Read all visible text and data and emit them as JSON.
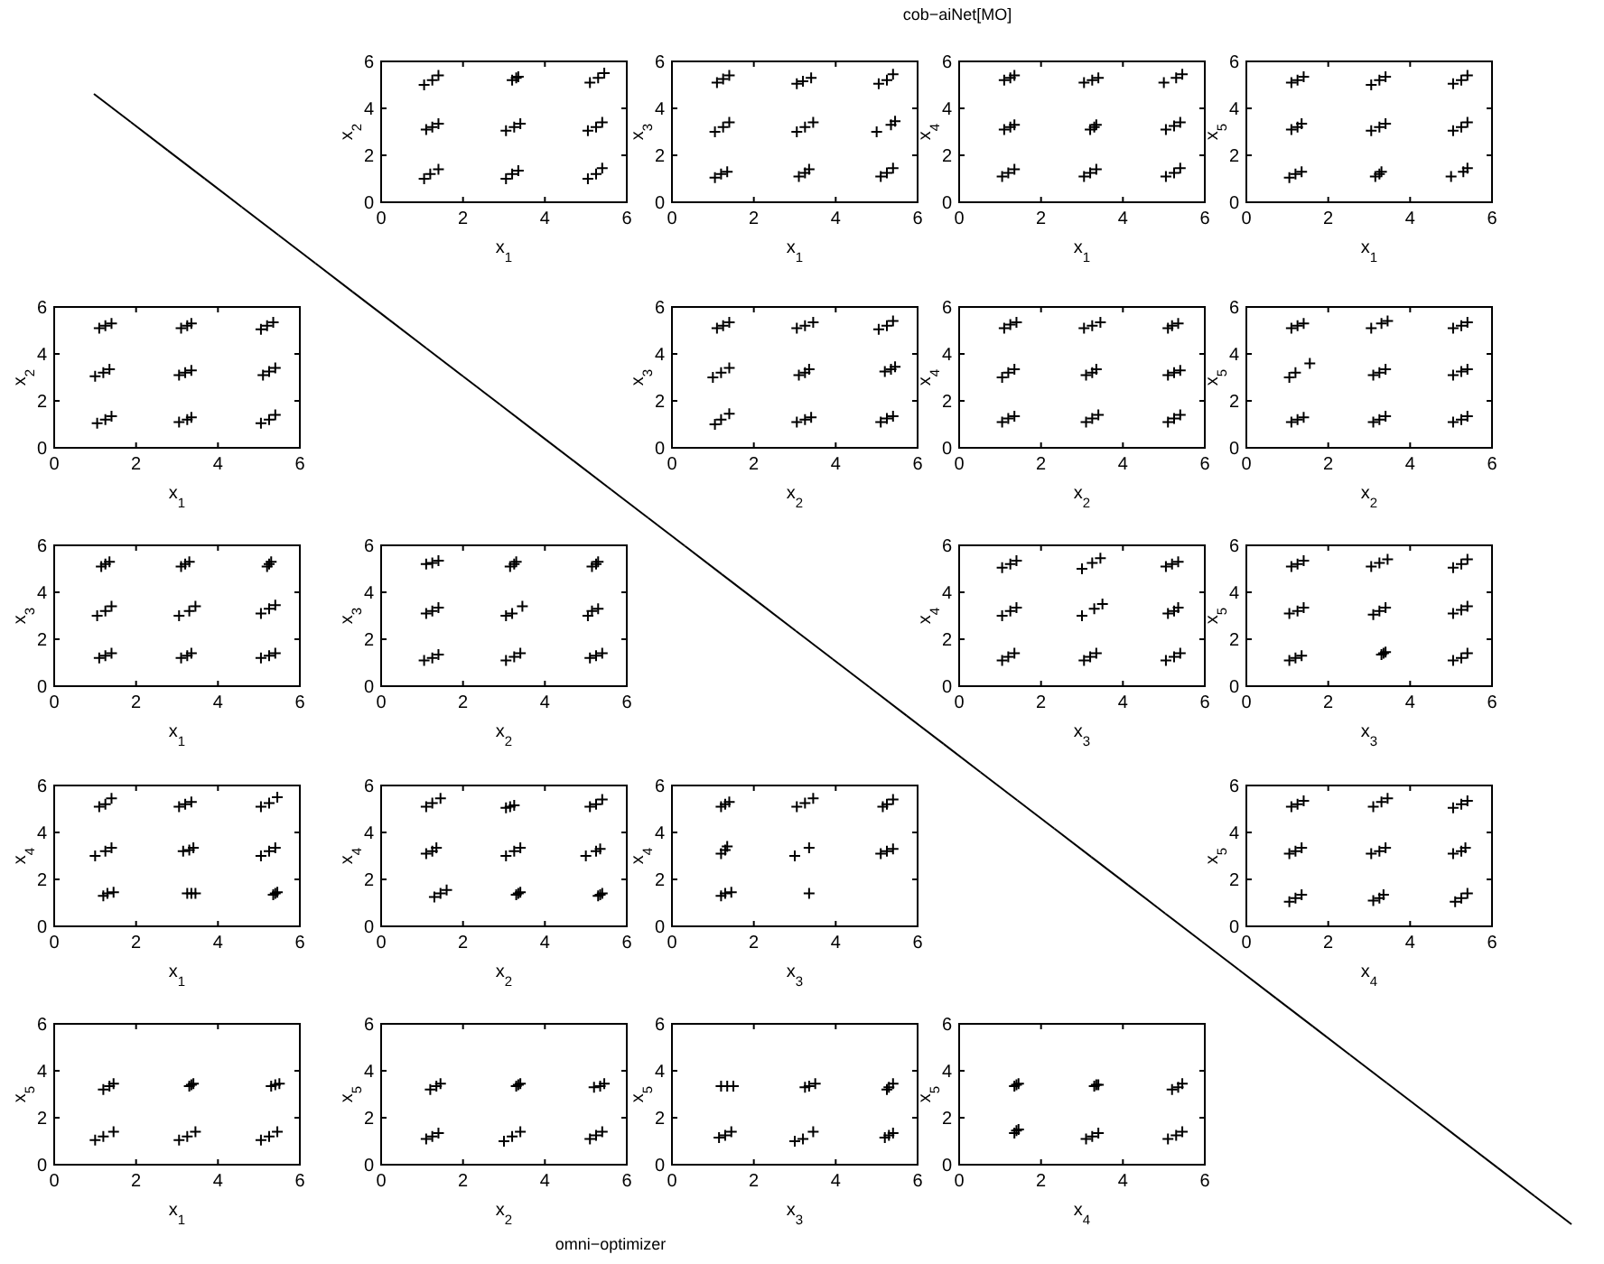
{
  "chart_data": [
    {
      "type": "scatter",
      "xlabel": "x$_{1}$",
      "ylabel": "x$_{2}$",
      "xlim": [
        0,
        6
      ],
      "ylim": [
        0,
        6
      ],
      "xticks": [
        0,
        2,
        4,
        6
      ],
      "yticks": [
        0,
        2,
        4,
        6
      ],
      "marker": "cross",
      "series": [
        {
          "color": "#000000",
          "x": [
            1.05,
            1.2,
            1.4,
            3.05,
            3.2,
            3.35,
            5.05,
            5.25,
            5.4,
            1.1,
            1.25,
            1.4,
            3.05,
            3.25,
            3.4,
            5.05,
            5.25,
            5.4,
            1.05,
            1.25,
            1.4,
            3.2,
            3.3,
            3.35,
            5.1,
            5.3,
            5.45
          ],
          "values": [
            1.0,
            1.2,
            1.4,
            1.0,
            1.2,
            1.35,
            1.0,
            1.2,
            1.45,
            3.1,
            3.2,
            3.35,
            3.05,
            3.2,
            3.35,
            3.05,
            3.2,
            3.4,
            5.0,
            5.2,
            5.4,
            5.2,
            5.3,
            5.35,
            5.1,
            5.3,
            5.5
          ]
        }
      ]
    },
    {
      "type": "scatter",
      "title": "cob−aiNet[MO]",
      "xlabel": "x$_{1}$",
      "ylabel": "x$_{3}$",
      "xlim": [
        0,
        6
      ],
      "ylim": [
        0,
        6
      ],
      "xticks": [
        0,
        2,
        4,
        6
      ],
      "yticks": [
        0,
        2,
        4,
        6
      ],
      "marker": "cross",
      "series": [
        {
          "color": "#000000",
          "x": [
            1.05,
            1.2,
            1.35,
            3.1,
            3.25,
            3.35,
            5.1,
            5.25,
            5.4,
            1.05,
            1.25,
            1.4,
            3.05,
            3.25,
            3.45,
            5.0,
            5.35,
            5.45,
            1.1,
            1.25,
            1.4,
            3.05,
            3.2,
            3.4,
            5.05,
            5.25,
            5.4
          ],
          "values": [
            1.05,
            1.2,
            1.3,
            1.1,
            1.25,
            1.4,
            1.1,
            1.25,
            1.45,
            3.0,
            3.2,
            3.4,
            3.0,
            3.2,
            3.4,
            3.0,
            3.3,
            3.45,
            5.1,
            5.25,
            5.4,
            5.05,
            5.15,
            5.3,
            5.05,
            5.2,
            5.45
          ]
        }
      ]
    },
    {
      "type": "scatter",
      "xlabel": "x$_{1}$",
      "ylabel": "x$_{4}$",
      "xlim": [
        0,
        6
      ],
      "ylim": [
        0,
        6
      ],
      "xticks": [
        0,
        2,
        4,
        6
      ],
      "yticks": [
        0,
        2,
        4,
        6
      ],
      "marker": "cross",
      "series": [
        {
          "color": "#000000",
          "x": [
            1.05,
            1.2,
            1.35,
            3.05,
            3.2,
            3.35,
            5.05,
            5.25,
            5.4,
            1.1,
            1.25,
            1.35,
            3.2,
            3.3,
            3.35,
            5.05,
            5.25,
            5.4,
            1.1,
            1.25,
            1.35,
            3.05,
            3.25,
            3.4,
            5.0,
            5.3,
            5.45
          ],
          "values": [
            1.1,
            1.25,
            1.4,
            1.1,
            1.25,
            1.4,
            1.1,
            1.25,
            1.45,
            3.1,
            3.2,
            3.3,
            3.1,
            3.2,
            3.3,
            3.1,
            3.25,
            3.4,
            5.2,
            5.3,
            5.4,
            5.1,
            5.2,
            5.3,
            5.1,
            5.3,
            5.45
          ]
        }
      ]
    },
    {
      "type": "scatter",
      "xlabel": "x$_{1}$",
      "ylabel": "x$_{5}$",
      "xlim": [
        0,
        6
      ],
      "ylim": [
        0,
        6
      ],
      "xticks": [
        0,
        2,
        4,
        6
      ],
      "yticks": [
        0,
        2,
        4,
        6
      ],
      "marker": "cross",
      "series": [
        {
          "color": "#000000",
          "x": [
            1.05,
            1.2,
            1.35,
            3.15,
            3.25,
            3.3,
            5.0,
            5.3,
            5.4,
            1.1,
            1.25,
            1.35,
            3.05,
            3.25,
            3.4,
            5.05,
            5.25,
            5.4,
            1.1,
            1.25,
            1.4,
            3.05,
            3.25,
            3.4,
            5.05,
            5.25,
            5.4
          ],
          "values": [
            1.05,
            1.2,
            1.3,
            1.1,
            1.2,
            1.3,
            1.1,
            1.3,
            1.45,
            3.1,
            3.2,
            3.35,
            3.05,
            3.2,
            3.35,
            3.05,
            3.2,
            3.4,
            5.1,
            5.2,
            5.35,
            5.0,
            5.2,
            5.35,
            5.05,
            5.2,
            5.4
          ]
        }
      ]
    },
    {
      "type": "scatter",
      "xlabel": "x$_{1}$",
      "ylabel": "x$_{2}$",
      "xlim": [
        0,
        6
      ],
      "ylim": [
        0,
        6
      ],
      "xticks": [
        0,
        2,
        4,
        6
      ],
      "yticks": [
        0,
        2,
        4,
        6
      ],
      "marker": "cross",
      "series": [
        {
          "color": "#000000",
          "x": [
            1.05,
            1.25,
            1.4,
            3.05,
            3.25,
            3.35,
            5.05,
            5.25,
            5.4,
            1.0,
            1.2,
            1.35,
            3.05,
            3.2,
            3.35,
            5.1,
            5.25,
            5.4,
            1.1,
            1.25,
            1.4,
            3.1,
            3.25,
            3.35,
            5.05,
            5.2,
            5.35
          ],
          "values": [
            1.05,
            1.2,
            1.35,
            1.1,
            1.2,
            1.3,
            1.05,
            1.2,
            1.4,
            3.05,
            3.2,
            3.35,
            3.1,
            3.2,
            3.3,
            3.1,
            3.25,
            3.4,
            5.1,
            5.2,
            5.3,
            5.1,
            5.2,
            5.3,
            5.05,
            5.2,
            5.35
          ]
        }
      ]
    },
    {
      "type": "scatter",
      "xlabel": "x$_{2}$",
      "ylabel": "x$_{3}$",
      "xlim": [
        0,
        6
      ],
      "ylim": [
        0,
        6
      ],
      "xticks": [
        0,
        2,
        4,
        6
      ],
      "yticks": [
        0,
        2,
        4,
        6
      ],
      "marker": "cross",
      "series": [
        {
          "color": "#000000",
          "x": [
            1.05,
            1.2,
            1.4,
            3.05,
            3.25,
            3.4,
            5.1,
            5.25,
            5.4,
            1.0,
            1.2,
            1.4,
            3.1,
            3.25,
            3.35,
            5.2,
            5.35,
            5.45,
            1.1,
            1.25,
            1.4,
            3.05,
            3.25,
            3.45,
            5.05,
            5.25,
            5.4
          ],
          "values": [
            1.0,
            1.2,
            1.45,
            1.1,
            1.2,
            1.3,
            1.1,
            1.25,
            1.35,
            3.0,
            3.2,
            3.4,
            3.1,
            3.2,
            3.35,
            3.25,
            3.35,
            3.45,
            5.1,
            5.2,
            5.35,
            5.1,
            5.2,
            5.35,
            5.05,
            5.2,
            5.4
          ]
        }
      ]
    },
    {
      "type": "scatter",
      "xlabel": "x$_{2}$",
      "ylabel": "x$_{4}$",
      "xlim": [
        0,
        6
      ],
      "ylim": [
        0,
        6
      ],
      "xticks": [
        0,
        2,
        4,
        6
      ],
      "yticks": [
        0,
        2,
        4,
        6
      ],
      "marker": "cross",
      "series": [
        {
          "color": "#000000",
          "x": [
            1.05,
            1.2,
            1.35,
            3.1,
            3.25,
            3.4,
            5.1,
            5.25,
            5.4,
            1.05,
            1.2,
            1.35,
            3.1,
            3.25,
            3.35,
            5.1,
            5.25,
            5.4,
            1.1,
            1.25,
            1.4,
            3.05,
            3.25,
            3.45,
            5.1,
            5.2,
            5.35
          ],
          "values": [
            1.1,
            1.25,
            1.35,
            1.1,
            1.25,
            1.4,
            1.1,
            1.25,
            1.4,
            3.0,
            3.2,
            3.35,
            3.1,
            3.2,
            3.35,
            3.1,
            3.2,
            3.3,
            5.1,
            5.25,
            5.35,
            5.1,
            5.2,
            5.35,
            5.1,
            5.2,
            5.3
          ]
        }
      ]
    },
    {
      "type": "scatter",
      "xlabel": "x$_{2}$",
      "ylabel": "x$_{5}$",
      "xlim": [
        0,
        6
      ],
      "ylim": [
        0,
        6
      ],
      "xticks": [
        0,
        2,
        4,
        6
      ],
      "yticks": [
        0,
        2,
        4,
        6
      ],
      "marker": "cross",
      "series": [
        {
          "color": "#000000",
          "x": [
            1.1,
            1.25,
            1.4,
            3.1,
            3.25,
            3.4,
            5.05,
            5.25,
            5.4,
            1.05,
            1.2,
            1.55,
            3.1,
            3.25,
            3.4,
            5.05,
            5.25,
            5.4,
            1.1,
            1.25,
            1.4,
            3.05,
            3.3,
            3.45,
            5.05,
            5.25,
            5.4
          ],
          "values": [
            1.1,
            1.2,
            1.3,
            1.1,
            1.2,
            1.35,
            1.1,
            1.2,
            1.35,
            3.0,
            3.2,
            3.6,
            3.1,
            3.2,
            3.35,
            3.1,
            3.25,
            3.35,
            5.1,
            5.2,
            5.3,
            5.1,
            5.3,
            5.4,
            5.1,
            5.2,
            5.35
          ]
        }
      ]
    },
    {
      "type": "scatter",
      "xlabel": "x$_{1}$",
      "ylabel": "x$_{3}$",
      "xlim": [
        0,
        6
      ],
      "ylim": [
        0,
        6
      ],
      "xticks": [
        0,
        2,
        4,
        6
      ],
      "yticks": [
        0,
        2,
        4,
        6
      ],
      "marker": "cross",
      "series": [
        {
          "color": "#000000",
          "x": [
            1.1,
            1.25,
            1.4,
            3.1,
            3.25,
            3.35,
            5.05,
            5.25,
            5.4,
            1.05,
            1.25,
            1.4,
            3.05,
            3.3,
            3.45,
            5.05,
            5.25,
            5.4,
            1.15,
            1.25,
            1.35,
            3.1,
            3.2,
            3.3,
            5.2,
            5.25,
            5.3
          ],
          "values": [
            1.2,
            1.3,
            1.4,
            1.2,
            1.3,
            1.4,
            1.2,
            1.3,
            1.4,
            3.0,
            3.2,
            3.4,
            3.0,
            3.2,
            3.4,
            3.1,
            3.3,
            3.45,
            5.1,
            5.2,
            5.3,
            5.1,
            5.2,
            5.3,
            5.1,
            5.2,
            5.3
          ]
        }
      ]
    },
    {
      "type": "scatter",
      "xlabel": "x$_{2}$",
      "ylabel": "x$_{3}$",
      "xlim": [
        0,
        6
      ],
      "ylim": [
        0,
        6
      ],
      "xticks": [
        0,
        2,
        4,
        6
      ],
      "yticks": [
        0,
        2,
        4,
        6
      ],
      "marker": "cross",
      "series": [
        {
          "color": "#000000",
          "x": [
            1.05,
            1.25,
            1.4,
            3.05,
            3.25,
            3.4,
            5.1,
            5.25,
            5.4,
            1.1,
            1.25,
            1.4,
            3.05,
            3.2,
            3.45,
            5.05,
            5.15,
            5.3,
            1.1,
            1.25,
            1.4,
            3.15,
            3.25,
            3.3,
            5.15,
            5.25,
            5.3
          ],
          "values": [
            1.1,
            1.2,
            1.35,
            1.1,
            1.25,
            1.4,
            1.2,
            1.3,
            1.4,
            3.1,
            3.2,
            3.35,
            3.0,
            3.1,
            3.4,
            3.0,
            3.2,
            3.3,
            5.2,
            5.25,
            5.35,
            5.1,
            5.2,
            5.3,
            5.1,
            5.2,
            5.3
          ]
        }
      ]
    },
    {
      "type": "scatter",
      "xlabel": "x$_{3}$",
      "ylabel": "x$_{4}$",
      "xlim": [
        0,
        6
      ],
      "ylim": [
        0,
        6
      ],
      "xticks": [
        0,
        2,
        4,
        6
      ],
      "yticks": [
        0,
        2,
        4,
        6
      ],
      "marker": "cross",
      "series": [
        {
          "color": "#000000",
          "x": [
            1.05,
            1.2,
            1.35,
            3.05,
            3.2,
            3.35,
            5.05,
            5.25,
            5.4,
            1.05,
            1.25,
            1.4,
            3.0,
            3.3,
            3.5,
            5.1,
            5.25,
            5.35,
            1.05,
            1.25,
            1.4,
            3.0,
            3.25,
            3.45,
            5.05,
            5.2,
            5.35
          ],
          "values": [
            1.1,
            1.25,
            1.4,
            1.1,
            1.25,
            1.4,
            1.1,
            1.25,
            1.4,
            3.0,
            3.2,
            3.35,
            3.0,
            3.3,
            3.5,
            3.1,
            3.2,
            3.35,
            5.05,
            5.2,
            5.35,
            5.0,
            5.25,
            5.45,
            5.1,
            5.2,
            5.3
          ]
        }
      ]
    },
    {
      "type": "scatter",
      "xlabel": "x$_{3}$",
      "ylabel": "x$_{5}$",
      "xlim": [
        0,
        6
      ],
      "ylim": [
        0,
        6
      ],
      "xticks": [
        0,
        2,
        4,
        6
      ],
      "yticks": [
        0,
        2,
        4,
        6
      ],
      "marker": "cross",
      "series": [
        {
          "color": "#000000",
          "x": [
            1.05,
            1.2,
            1.35,
            3.3,
            3.35,
            3.4,
            5.05,
            5.25,
            5.4,
            1.05,
            1.25,
            1.4,
            3.1,
            3.25,
            3.4,
            5.05,
            5.25,
            5.4,
            1.1,
            1.25,
            1.4,
            3.05,
            3.25,
            3.45,
            5.05,
            5.25,
            5.4
          ],
          "values": [
            1.1,
            1.2,
            1.3,
            1.35,
            1.4,
            1.45,
            1.1,
            1.2,
            1.4,
            3.1,
            3.2,
            3.35,
            3.05,
            3.2,
            3.35,
            3.1,
            3.25,
            3.4,
            5.1,
            5.2,
            5.35,
            5.1,
            5.25,
            5.4,
            5.05,
            5.2,
            5.4
          ]
        }
      ]
    },
    {
      "type": "scatter",
      "xlabel": "x$_{1}$",
      "ylabel": "x$_{4}$",
      "xlim": [
        0,
        6
      ],
      "ylim": [
        0,
        6
      ],
      "xticks": [
        0,
        2,
        4,
        6
      ],
      "yticks": [
        0,
        2,
        4,
        6
      ],
      "marker": "cross",
      "series": [
        {
          "color": "#000000",
          "x": [
            1.2,
            1.3,
            1.45,
            3.25,
            3.35,
            3.45,
            5.35,
            5.4,
            5.45,
            1.0,
            1.25,
            1.4,
            3.15,
            3.3,
            3.4,
            5.05,
            5.25,
            5.4,
            1.1,
            1.25,
            1.4,
            3.05,
            3.2,
            3.35,
            5.05,
            5.25,
            5.45
          ],
          "values": [
            1.3,
            1.4,
            1.45,
            1.4,
            1.4,
            1.4,
            1.35,
            1.4,
            1.45,
            3.0,
            3.2,
            3.35,
            3.2,
            3.25,
            3.35,
            3.0,
            3.2,
            3.35,
            5.1,
            5.2,
            5.45,
            5.1,
            5.2,
            5.3,
            5.1,
            5.25,
            5.5
          ]
        }
      ]
    },
    {
      "type": "scatter",
      "xlabel": "x$_{2}$",
      "ylabel": "x$_{4}$",
      "xlim": [
        0,
        6
      ],
      "ylim": [
        0,
        6
      ],
      "xticks": [
        0,
        2,
        4,
        6
      ],
      "yticks": [
        0,
        2,
        4,
        6
      ],
      "marker": "cross",
      "series": [
        {
          "color": "#000000",
          "x": [
            1.3,
            1.6,
            1.45,
            3.3,
            3.35,
            3.4,
            5.3,
            5.35,
            5.4,
            1.1,
            1.25,
            1.35,
            3.05,
            3.25,
            3.4,
            5.0,
            5.25,
            5.35,
            1.1,
            1.25,
            1.45,
            3.05,
            3.15,
            3.25,
            5.1,
            5.25,
            5.4
          ],
          "values": [
            1.25,
            1.55,
            1.4,
            1.35,
            1.4,
            1.45,
            1.3,
            1.35,
            1.4,
            3.1,
            3.2,
            3.35,
            3.0,
            3.2,
            3.35,
            3.0,
            3.2,
            3.3,
            5.1,
            5.25,
            5.45,
            5.05,
            5.1,
            5.15,
            5.1,
            5.2,
            5.4
          ]
        }
      ]
    },
    {
      "type": "scatter",
      "xlabel": "x$_{3}$",
      "ylabel": "x$_{4}$",
      "xlim": [
        0,
        6
      ],
      "ylim": [
        0,
        6
      ],
      "xticks": [
        0,
        2,
        4,
        6
      ],
      "yticks": [
        0,
        2,
        4,
        6
      ],
      "marker": "cross",
      "series": [
        {
          "color": "#000000",
          "x": [
            1.2,
            1.3,
            1.45,
            3.35,
            1.2,
            1.3,
            1.35,
            3.0,
            3.35,
            5.1,
            5.25,
            5.4,
            1.2,
            1.3,
            1.4,
            3.05,
            3.25,
            3.45,
            5.15,
            5.25,
            5.4
          ],
          "values": [
            1.3,
            1.4,
            1.45,
            1.4,
            3.1,
            3.25,
            3.4,
            3.0,
            3.35,
            3.1,
            3.2,
            3.3,
            5.1,
            5.2,
            5.3,
            5.1,
            5.25,
            5.45,
            5.1,
            5.2,
            5.4
          ]
        }
      ]
    },
    {
      "type": "scatter",
      "xlabel": "x$_{4}$",
      "ylabel": "x$_{5}$",
      "xlim": [
        0,
        6
      ],
      "ylim": [
        0,
        6
      ],
      "xticks": [
        0,
        2,
        4,
        6
      ],
      "yticks": [
        0,
        2,
        4,
        6
      ],
      "marker": "cross",
      "series": [
        {
          "color": "#000000",
          "x": [
            1.05,
            1.2,
            1.35,
            3.1,
            3.25,
            3.35,
            5.1,
            5.25,
            5.4,
            1.05,
            1.2,
            1.35,
            3.05,
            3.25,
            3.4,
            5.05,
            5.25,
            5.35,
            1.1,
            1.25,
            1.4,
            3.1,
            3.3,
            3.45,
            5.05,
            5.25,
            5.4
          ],
          "values": [
            1.05,
            1.2,
            1.35,
            1.1,
            1.2,
            1.35,
            1.05,
            1.2,
            1.4,
            3.1,
            3.2,
            3.35,
            3.1,
            3.2,
            3.35,
            3.1,
            3.2,
            3.35,
            5.1,
            5.2,
            5.35,
            5.1,
            5.3,
            5.45,
            5.05,
            5.2,
            5.35
          ]
        }
      ]
    },
    {
      "type": "scatter",
      "xlabel": "x$_{1}$",
      "ylabel": "x$_{5}$",
      "xlim": [
        0,
        6
      ],
      "ylim": [
        0,
        6
      ],
      "xticks": [
        0,
        2,
        4,
        6
      ],
      "yticks": [
        0,
        2,
        4,
        6
      ],
      "marker": "cross",
      "series": [
        {
          "color": "#000000",
          "x": [
            1.0,
            1.2,
            1.45,
            3.05,
            3.25,
            3.45,
            5.05,
            5.25,
            5.45,
            1.2,
            1.35,
            1.45,
            3.3,
            3.35,
            3.4,
            5.3,
            5.4,
            5.5
          ],
          "values": [
            1.05,
            1.2,
            1.4,
            1.05,
            1.2,
            1.4,
            1.05,
            1.2,
            1.4,
            3.2,
            3.35,
            3.45,
            3.35,
            3.4,
            3.45,
            3.35,
            3.4,
            3.45
          ]
        }
      ]
    },
    {
      "type": "scatter",
      "xlabel": "x$_{2}$",
      "ylabel": "x$_{5}$",
      "xlim": [
        0,
        6
      ],
      "ylim": [
        0,
        6
      ],
      "xticks": [
        0,
        2,
        4,
        6
      ],
      "yticks": [
        0,
        2,
        4,
        6
      ],
      "marker": "cross",
      "annotations": [
        "omni−optimizer"
      ],
      "series": [
        {
          "color": "#000000",
          "x": [
            1.1,
            1.25,
            1.4,
            3.0,
            3.2,
            3.4,
            5.1,
            5.25,
            5.4,
            1.2,
            1.35,
            1.45,
            3.3,
            3.35,
            3.4,
            5.2,
            5.35,
            5.45
          ],
          "values": [
            1.1,
            1.2,
            1.35,
            1.0,
            1.2,
            1.4,
            1.1,
            1.25,
            1.4,
            3.2,
            3.35,
            3.45,
            3.35,
            3.4,
            3.45,
            3.3,
            3.35,
            3.45
          ]
        }
      ]
    },
    {
      "type": "scatter",
      "xlabel": "x$_{3}$",
      "ylabel": "x$_{5}$",
      "xlim": [
        0,
        6
      ],
      "ylim": [
        0,
        6
      ],
      "xticks": [
        0,
        2,
        4,
        6
      ],
      "yticks": [
        0,
        2,
        4,
        6
      ],
      "marker": "cross",
      "series": [
        {
          "color": "#000000",
          "x": [
            1.15,
            1.3,
            1.45,
            3.0,
            3.2,
            3.45,
            5.2,
            5.3,
            5.4,
            1.2,
            1.35,
            1.5,
            3.25,
            3.35,
            3.5,
            5.25,
            5.3,
            5.4
          ],
          "values": [
            1.15,
            1.25,
            1.4,
            1.0,
            1.1,
            1.4,
            1.15,
            1.25,
            1.35,
            3.35,
            3.35,
            3.35,
            3.3,
            3.35,
            3.45,
            3.2,
            3.3,
            3.45
          ]
        }
      ]
    },
    {
      "type": "scatter",
      "xlabel": "x$_{4}$",
      "ylabel": "x$_{5}$",
      "xlim": [
        0,
        6
      ],
      "ylim": [
        0,
        6
      ],
      "xticks": [
        0,
        2,
        4,
        6
      ],
      "yticks": [
        0,
        2,
        4,
        6
      ],
      "marker": "cross",
      "series": [
        {
          "color": "#000000",
          "x": [
            1.35,
            1.4,
            1.45,
            3.1,
            3.25,
            3.4,
            5.1,
            5.3,
            5.45,
            1.35,
            1.4,
            1.45,
            3.3,
            3.35,
            3.4,
            5.2,
            5.35,
            5.45
          ],
          "values": [
            1.35,
            1.45,
            1.5,
            1.1,
            1.2,
            1.35,
            1.1,
            1.25,
            1.4,
            3.35,
            3.4,
            3.45,
            3.35,
            3.4,
            3.4,
            3.2,
            3.3,
            3.45
          ]
        }
      ]
    }
  ]
}
